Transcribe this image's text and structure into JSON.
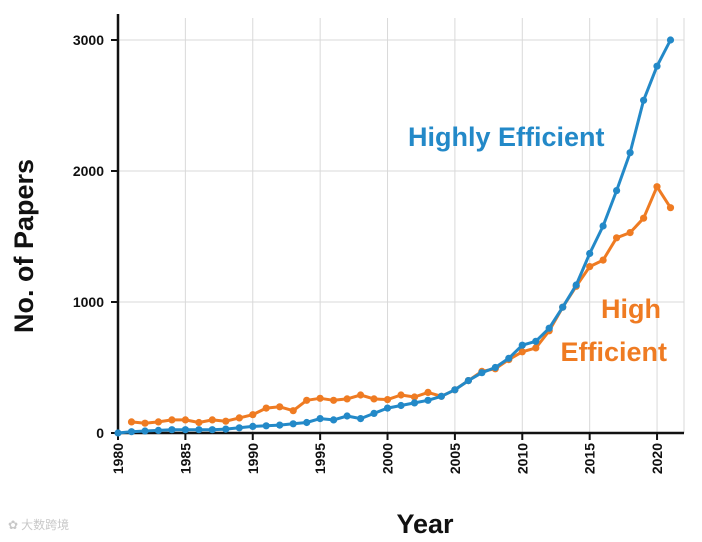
{
  "chart_data": {
    "type": "line",
    "title": "",
    "xlabel": "Year",
    "ylabel": "No. of Papers",
    "xlim": [
      1980,
      2022
    ],
    "ylim": [
      0,
      3000
    ],
    "x_ticks": [
      "1980",
      "1985",
      "1990",
      "1995",
      "2000",
      "2005",
      "2010",
      "2015",
      "2020"
    ],
    "y_ticks": [
      "0",
      "1000",
      "2000",
      "3000"
    ],
    "grid": true,
    "series": [
      {
        "name": "Highly Efficient",
        "color": "#2389c8",
        "x": [
          1980,
          1981,
          1982,
          1983,
          1984,
          1985,
          1986,
          1987,
          1988,
          1989,
          1990,
          1991,
          1992,
          1993,
          1994,
          1995,
          1996,
          1997,
          1998,
          1999,
          2000,
          2001,
          2002,
          2003,
          2004,
          2005,
          2006,
          2007,
          2008,
          2009,
          2010,
          2011,
          2012,
          2013,
          2014,
          2015,
          2016,
          2017,
          2018,
          2019,
          2020,
          2021
        ],
        "values": [
          0,
          10,
          15,
          20,
          25,
          25,
          25,
          25,
          30,
          40,
          50,
          55,
          60,
          70,
          80,
          110,
          100,
          130,
          110,
          150,
          190,
          210,
          230,
          250,
          280,
          330,
          400,
          460,
          500,
          570,
          670,
          700,
          800,
          960,
          1130,
          1370,
          1580,
          1850,
          2140,
          2540,
          2800,
          3000
        ]
      },
      {
        "name": "High Efficient",
        "color": "#ef7b22",
        "x": [
          1981,
          1982,
          1983,
          1984,
          1985,
          1986,
          1987,
          1988,
          1989,
          1990,
          1991,
          1992,
          1993,
          1994,
          1995,
          1996,
          1997,
          1998,
          1999,
          2000,
          2001,
          2002,
          2003,
          2004,
          2005,
          2006,
          2007,
          2008,
          2009,
          2010,
          2011,
          2012,
          2013,
          2014,
          2015,
          2016,
          2017,
          2018,
          2019,
          2020,
          2021
        ],
        "values": [
          85,
          75,
          85,
          100,
          100,
          80,
          100,
          90,
          115,
          140,
          190,
          200,
          170,
          250,
          265,
          250,
          260,
          290,
          260,
          255,
          290,
          275,
          310,
          280,
          330,
          400,
          470,
          490,
          560,
          620,
          650,
          780,
          960,
          1120,
          1270,
          1320,
          1490,
          1530,
          1640,
          1880,
          1720
        ]
      }
    ],
    "annotations": [
      {
        "series": "Highly Efficient",
        "lines": [
          "Highly Efficient"
        ]
      },
      {
        "series": "High Efficient",
        "lines": [
          "High",
          "Efficient"
        ]
      }
    ]
  },
  "watermark": {
    "text": "大数跨境",
    "icon": "watermark-logo-icon"
  }
}
